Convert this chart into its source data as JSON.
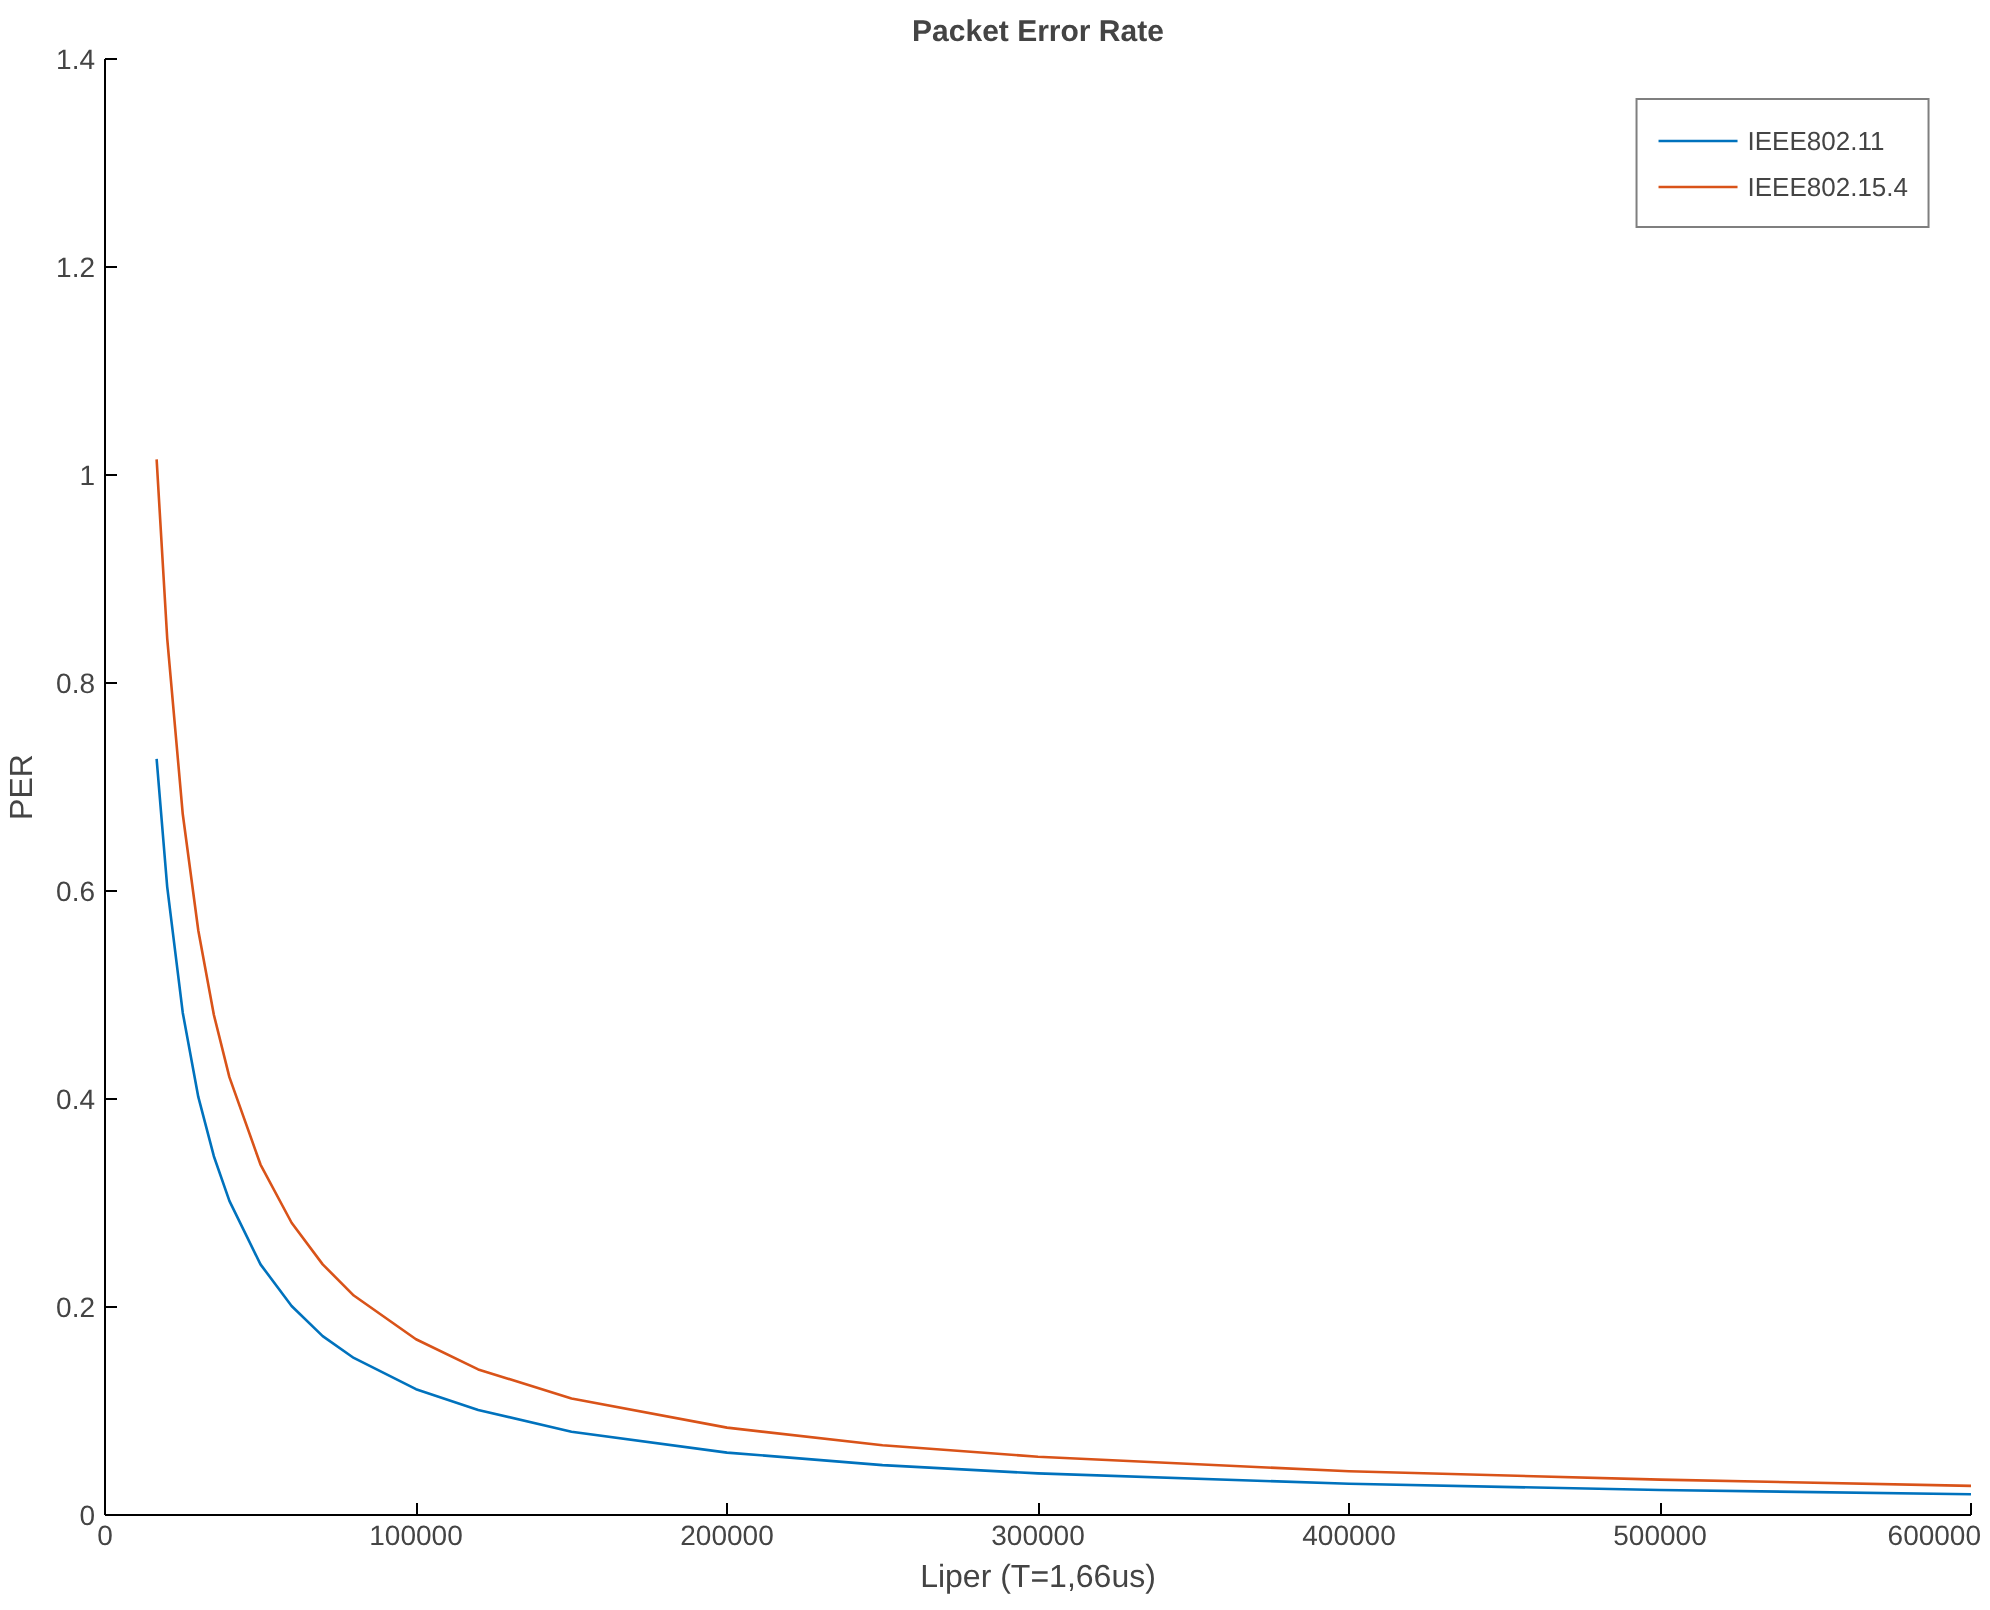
{
  "chart_data": {
    "type": "line",
    "title": "Packet Error Rate",
    "xlabel": "Liper (T=1,66us)",
    "ylabel": "PER",
    "x": [
      16600,
      20000,
      25000,
      30000,
      35000,
      40000,
      50000,
      60000,
      70000,
      80000,
      100000,
      120000,
      150000,
      200000,
      250000,
      300000,
      400000,
      500000,
      600000
    ],
    "series": [
      {
        "name": "IEEE802.11",
        "color": "#0072bd",
        "values": [
          0.727,
          0.604,
          0.483,
          0.402,
          0.345,
          0.302,
          0.241,
          0.201,
          0.172,
          0.151,
          0.121,
          0.101,
          0.08,
          0.06,
          0.048,
          0.04,
          0.03,
          0.024,
          0.02
        ]
      },
      {
        "name": "IEEE802.15.4",
        "color": "#d95319",
        "values": [
          1.015,
          0.843,
          0.674,
          0.562,
          0.481,
          0.421,
          0.337,
          0.281,
          0.241,
          0.211,
          0.169,
          0.14,
          0.112,
          0.084,
          0.067,
          0.056,
          0.042,
          0.034,
          0.028
        ]
      }
    ],
    "xlim": [
      0,
      600000
    ],
    "ylim": [
      0,
      1.4
    ],
    "xticks": [
      0,
      100000,
      200000,
      300000,
      400000,
      500000,
      600000
    ],
    "yticks": [
      0,
      0.2,
      0.4,
      0.6,
      0.8,
      1,
      1.2,
      1.4
    ],
    "legend": "top right",
    "grid": false,
    "marker": "none",
    "line_style": "solid"
  }
}
